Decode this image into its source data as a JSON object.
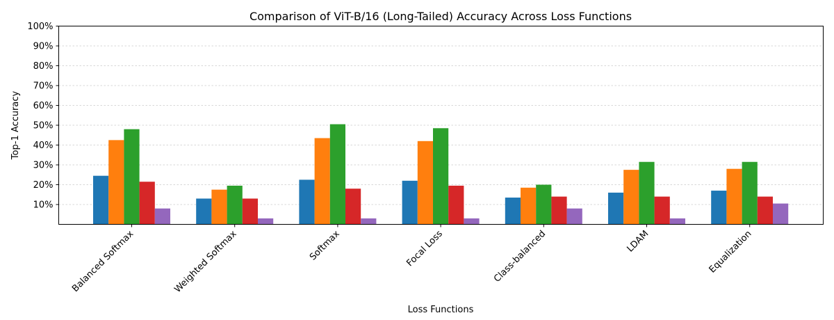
{
  "chart_data": {
    "type": "bar",
    "title": "Comparison of ViT-B/16 (Long-Tailed) Accuracy Across Loss Functions",
    "xlabel": "Loss Functions",
    "ylabel": "Top-1 Accuracy",
    "ylim": [
      0,
      100
    ],
    "yticks": [
      "10%",
      "20%",
      "30%",
      "40%",
      "50%",
      "60%",
      "70%",
      "80%",
      "90%",
      "100%"
    ],
    "grid": "horizontal dashed",
    "categories": [
      "Balanced Softmax",
      "Weighted Softmax",
      "Softmax",
      "Focal Loss",
      "Class-balanced",
      "LDAM",
      "Equalization"
    ],
    "series": [
      {
        "color": "#1f77b4",
        "values": [
          24.5,
          13.0,
          22.5,
          22.0,
          13.5,
          16.0,
          17.0
        ]
      },
      {
        "color": "#ff7f0e",
        "values": [
          42.5,
          17.5,
          43.5,
          42.0,
          18.5,
          27.5,
          28.0
        ]
      },
      {
        "color": "#2ca02c",
        "values": [
          48.0,
          19.5,
          50.5,
          48.5,
          20.0,
          31.5,
          31.5
        ]
      },
      {
        "color": "#d62728",
        "values": [
          21.5,
          13.0,
          18.0,
          19.5,
          14.0,
          14.0,
          14.0
        ]
      },
      {
        "color": "#9467bd",
        "values": [
          8.0,
          3.0,
          3.0,
          3.0,
          8.0,
          3.0,
          10.5
        ]
      }
    ]
  }
}
